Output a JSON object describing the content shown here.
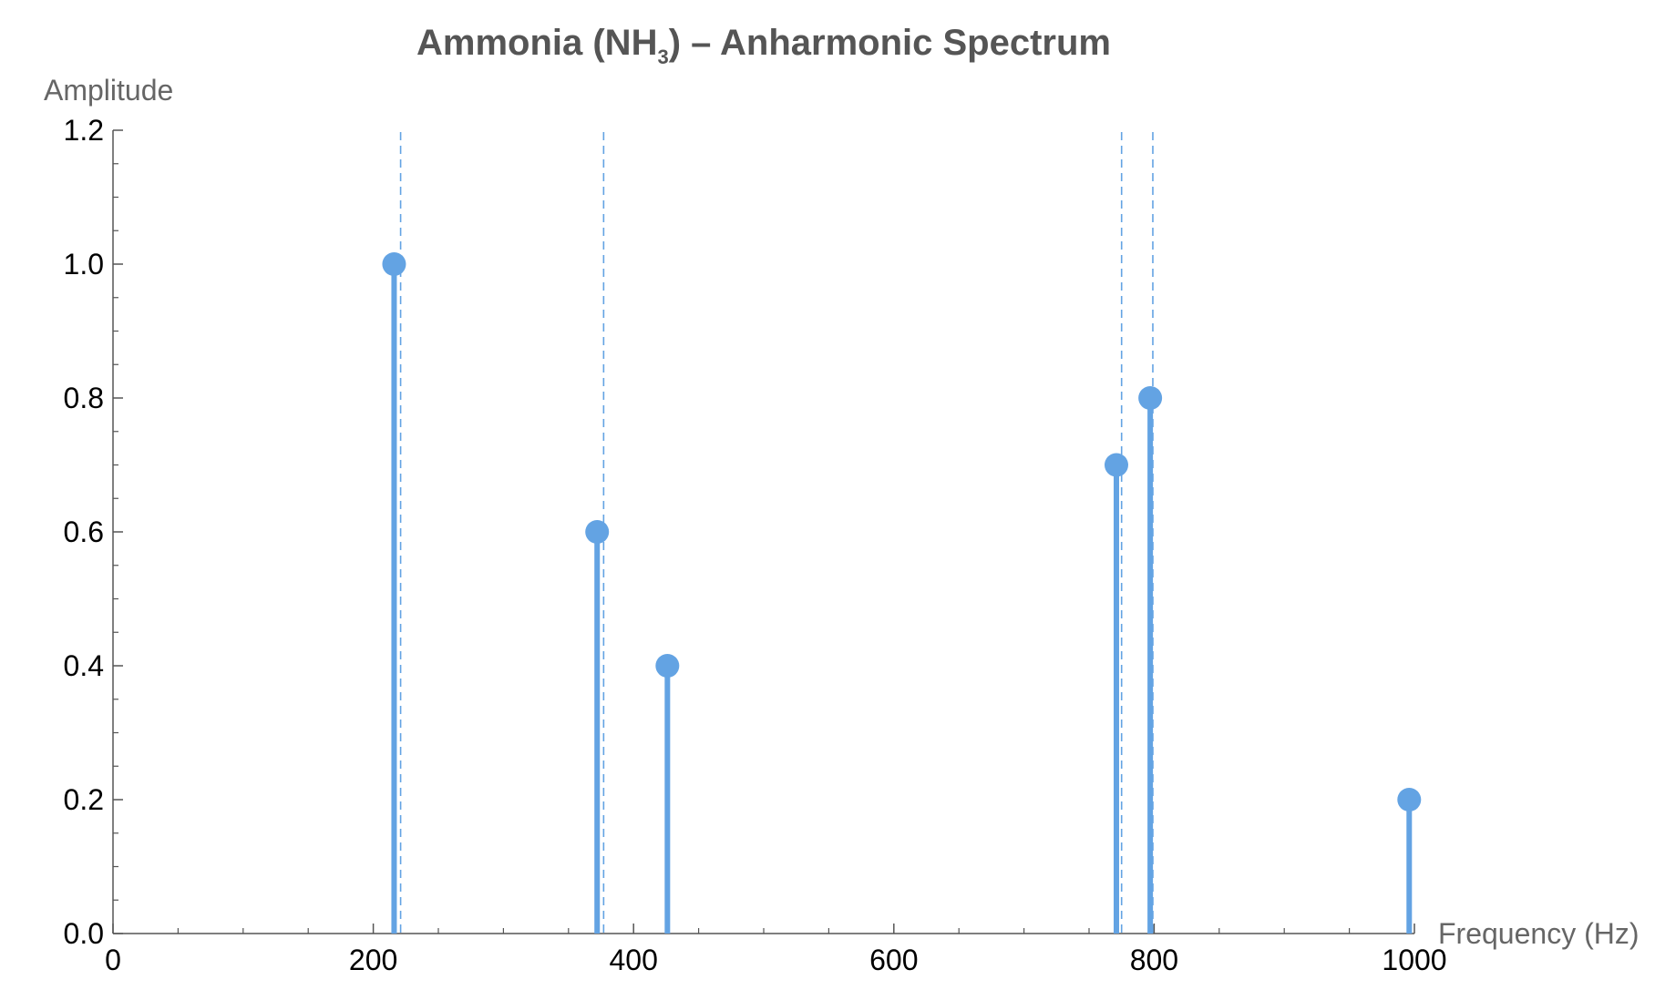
{
  "chart_data": {
    "type": "stem",
    "title_parts": {
      "before_subscript": "Ammonia (NH",
      "subscript": "3",
      "after_subscript": ") – Anharmonic Spectrum"
    },
    "xlabel": "Frequency (Hz)",
    "ylabel": "Amplitude",
    "xlim": [
      0,
      1000
    ],
    "ylim": [
      0,
      1.2
    ],
    "x_ticks": [
      0,
      200,
      400,
      600,
      800,
      1000
    ],
    "x_tick_labels": [
      "0",
      "200",
      "400",
      "600",
      "800",
      "1000"
    ],
    "y_ticks": [
      0,
      0.2,
      0.4,
      0.6,
      0.8,
      1.0,
      1.2
    ],
    "y_tick_labels": [
      "0.0",
      "0.2",
      "0.4",
      "0.6",
      "0.8",
      "1.0",
      "1.2"
    ],
    "x_minor_step": 50,
    "y_minor_step": 0.05,
    "grid": false,
    "stem_color": "#63a3e3",
    "reference_line_color": "#63a3e3",
    "axis_color": "#555555",
    "stems": [
      {
        "x": 216,
        "y": 1.0
      },
      {
        "x": 372,
        "y": 0.6
      },
      {
        "x": 426,
        "y": 0.4
      },
      {
        "x": 771,
        "y": 0.7
      },
      {
        "x": 797,
        "y": 0.8
      },
      {
        "x": 996,
        "y": 0.2
      }
    ],
    "reference_lines_x": [
      221,
      377,
      775,
      799
    ]
  }
}
